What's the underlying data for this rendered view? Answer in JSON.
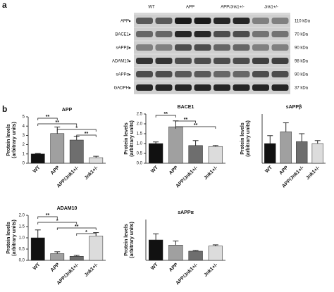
{
  "figure_labels": {
    "a": "a",
    "b": "b"
  },
  "blot": {
    "columns": [
      "WT",
      "APP",
      "APP/Jnk1+/-",
      "Jnk1+/-"
    ],
    "rows": [
      {
        "label": "APP▸",
        "size": "110 kDa"
      },
      {
        "label": "BACE1▸",
        "size": "70 kDa"
      },
      {
        "label": "sAPPβ▸",
        "size": "90 kDa"
      },
      {
        "label": "ADAM10▸",
        "size": "98 kDa"
      },
      {
        "label": "sAPPα▸",
        "size": "90 kDa"
      },
      {
        "label": "GADPH▸",
        "size": "37 kDa"
      }
    ]
  },
  "chart_data": [
    {
      "type": "bar",
      "title": "APP",
      "ylabel": [
        "Protein levels",
        "(arbitrary units)"
      ],
      "categories": [
        "WT",
        "APP",
        "APP/Jnk1+/-",
        "Jnk1+/-"
      ],
      "colors": [
        "#111111",
        "#a0a0a0",
        "#6e6e6e",
        "#dcdcdc"
      ],
      "values": [
        1.0,
        3.2,
        2.5,
        0.6
      ],
      "errors": [
        0.05,
        0.7,
        0.4,
        0.15
      ],
      "ylim": [
        0,
        5
      ],
      "yticks": [
        0,
        1,
        2,
        3,
        4,
        5
      ],
      "annotations": [
        {
          "label": "**",
          "from": 0,
          "to": 1
        },
        {
          "label": "**",
          "from": 0,
          "to": 2
        },
        {
          "label": "*",
          "from": 1,
          "to": 3
        },
        {
          "label": "**",
          "from": 2,
          "to": 3
        }
      ]
    },
    {
      "type": "bar",
      "title": "BACE1",
      "ylabel": [
        "Protein levels",
        "(arbitrary units)"
      ],
      "categories": [
        "WT",
        "APP",
        "APP/Jnk1+/-",
        "Jnk1+/-"
      ],
      "colors": [
        "#111111",
        "#a0a0a0",
        "#6e6e6e",
        "#dcdcdc"
      ],
      "values": [
        1.0,
        1.85,
        0.9,
        0.85
      ],
      "errors": [
        0.08,
        0.3,
        0.25,
        0.05
      ],
      "ylim": [
        0,
        2.5
      ],
      "yticks": [
        {
          "value": 0,
          "label": "0.0"
        },
        0.5,
        {
          "value": 1,
          "label": "1.0"
        },
        1.5,
        {
          "value": 2,
          "label": "2.0"
        },
        2.5
      ],
      "annotations": [
        {
          "label": "**",
          "from": 0,
          "to": 1
        },
        {
          "label": "**",
          "from": 1,
          "to": 2
        },
        {
          "label": "**",
          "from": 1,
          "to": 3
        }
      ]
    },
    {
      "type": "bar",
      "title": "sAPPβ",
      "ylabel": [
        "Protein levels",
        "(arbitrary units)"
      ],
      "categories": [
        "WT",
        "APP",
        "APP/Jnk1+/-",
        "Jnk1+/-"
      ],
      "colors": [
        "#111111",
        "#a0a0a0",
        "#6e6e6e",
        "#dcdcdc"
      ],
      "values": [
        1.0,
        1.6,
        1.1,
        1.0
      ],
      "errors": [
        0.4,
        0.45,
        0.4,
        0.15
      ],
      "ylim": [
        0,
        2.5
      ],
      "annotations": []
    },
    {
      "type": "bar",
      "title": "ADAM10",
      "ylabel": [
        "Protein levels",
        "(arbitrary units)"
      ],
      "categories": [
        "WT",
        "APP",
        "APP/Jnk1+/-",
        "Jnk1+/-"
      ],
      "colors": [
        "#111111",
        "#a0a0a0",
        "#6e6e6e",
        "#dcdcdc"
      ],
      "values": [
        1.0,
        0.3,
        0.18,
        1.08
      ],
      "errors": [
        0.35,
        0.08,
        0.04,
        0.15
      ],
      "ylim": [
        0,
        2
      ],
      "yticks": [
        {
          "value": 0,
          "label": "0.0"
        },
        0.5,
        {
          "value": 1,
          "label": "1.0"
        },
        1.5,
        {
          "value": 2,
          "label": "2.0"
        }
      ],
      "annotations": [
        {
          "label": "**",
          "from": 0,
          "to": 1
        },
        {
          "label": "*",
          "from": 0,
          "to": 2
        },
        {
          "label": "**",
          "from": 1,
          "to": 3
        },
        {
          "label": "*",
          "from": 2,
          "to": 3
        }
      ]
    },
    {
      "type": "bar",
      "title": "sAPPα",
      "ylabel": [
        "Protein levels",
        "(arbitrary units)"
      ],
      "categories": [
        "WT",
        "APP",
        "APP/Jnk1+/-",
        "Jnk1+/-"
      ],
      "colors": [
        "#111111",
        "#a0a0a0",
        "#6e6e6e",
        "#dcdcdc"
      ],
      "values": [
        1.0,
        0.75,
        0.45,
        0.7
      ],
      "errors": [
        0.3,
        0.2,
        0.03,
        0.06
      ],
      "ylim": [
        0,
        2
      ],
      "annotations": []
    }
  ]
}
